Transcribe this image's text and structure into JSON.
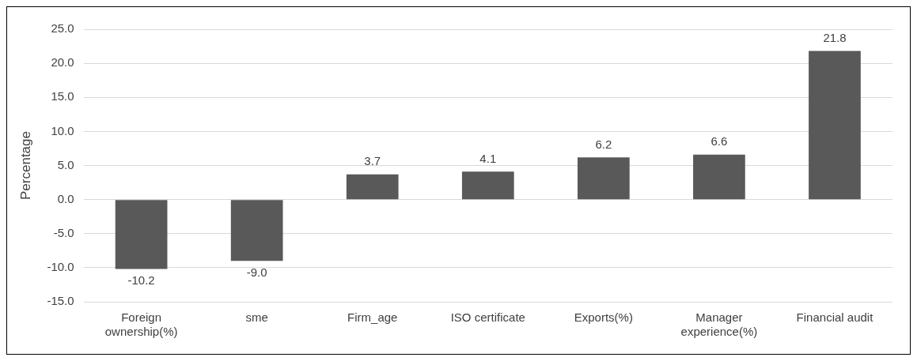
{
  "chart_data": {
    "type": "bar",
    "ylabel": "Percentage",
    "categories": [
      "Foreign ownership(%)",
      "sme",
      "Firm_age",
      "ISO certificate",
      "Exports(%)",
      "Manager experience(%)",
      "Financial audit"
    ],
    "values": [
      -10.2,
      -9.0,
      3.7,
      4.1,
      6.2,
      6.6,
      21.8
    ],
    "value_labels": [
      "-10.2",
      "-9.0",
      "3.7",
      "4.1",
      "6.2",
      "6.6",
      "21.8"
    ],
    "color": "#595959",
    "ylim": [
      -15,
      25
    ],
    "yticks": [
      {
        "value": -15,
        "label": "-15.0"
      },
      {
        "value": -10,
        "label": "-10.0"
      },
      {
        "value": -5,
        "label": "-5.0"
      },
      {
        "value": 0,
        "label": "0.0"
      },
      {
        "value": 5,
        "label": "5.0"
      },
      {
        "value": 10,
        "label": "10.0"
      },
      {
        "value": 15,
        "label": "15.0"
      },
      {
        "value": 20,
        "label": "20.0"
      },
      {
        "value": 25,
        "label": "25.0"
      }
    ],
    "grid": "y",
    "legend": false
  }
}
